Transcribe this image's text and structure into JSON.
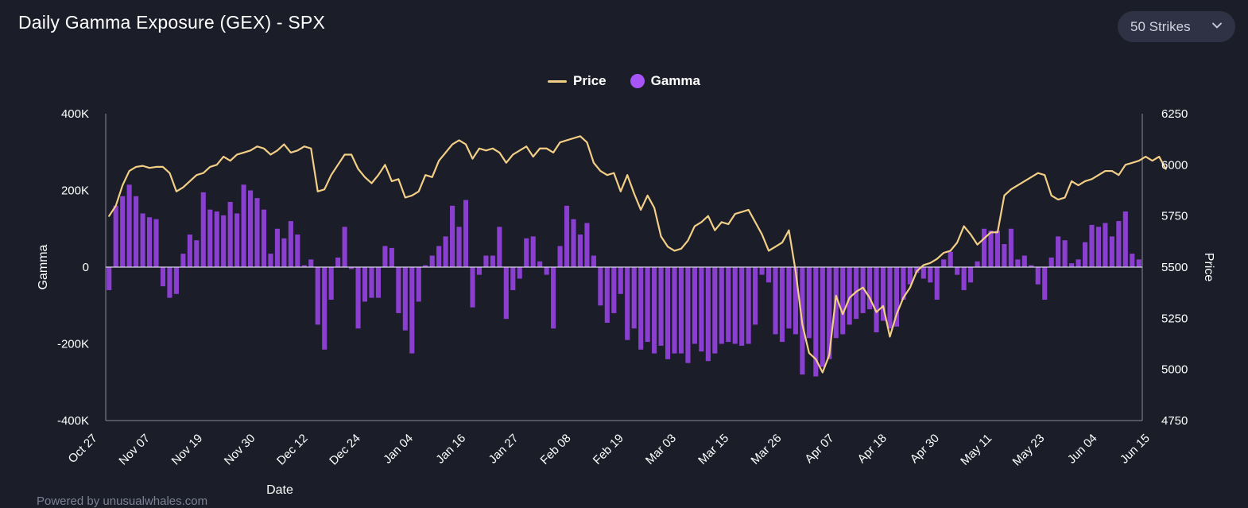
{
  "header": {
    "title": "Daily Gamma Exposure (GEX) - SPX",
    "strikes_label": "50 Strikes"
  },
  "legend": {
    "price_label": "Price",
    "gamma_label": "Gamma"
  },
  "footer": {
    "text": "Powered by unusualwhales.com"
  },
  "colors": {
    "background": "#1b1d29",
    "price_line": "#f3cf86",
    "gamma_bar": "#8b3fd0",
    "gamma_legend": "#a855f7"
  },
  "chart_data": {
    "type": "bar",
    "title": "Daily Gamma Exposure (GEX) - SPX",
    "xlabel": "Date",
    "ylabel_left": "Gamma",
    "ylabel_right": "Price",
    "ylim_left": [
      -400000,
      400000
    ],
    "ylim_right": [
      4750,
      6250
    ],
    "yticks_left": [
      "400K",
      "200K",
      "0",
      "-200K",
      "-400K"
    ],
    "yticks_right": [
      "6250",
      "6000",
      "5750",
      "5500",
      "5250",
      "5000",
      "4750"
    ],
    "xticks": [
      "Oct 27",
      "Nov 07",
      "Nov 19",
      "Nov 30",
      "Dec 12",
      "Dec 24",
      "Jan 04",
      "Jan 16",
      "Jan 27",
      "Feb 08",
      "Feb 19",
      "Mar 03",
      "Mar 15",
      "Mar 26",
      "Apr 07",
      "Apr 18",
      "Apr 30",
      "May 11",
      "May 23",
      "Jun 04",
      "Jun 15"
    ],
    "legend_position": "top-center",
    "grid": false,
    "series": [
      {
        "name": "Gamma",
        "type": "bar",
        "axis": "left",
        "values": [
          -60000,
          160000,
          185000,
          215000,
          185000,
          140000,
          130000,
          125000,
          -50000,
          -80000,
          -70000,
          35000,
          85000,
          70000,
          195000,
          150000,
          145000,
          135000,
          170000,
          140000,
          215000,
          200000,
          180000,
          150000,
          35000,
          100000,
          75000,
          120000,
          85000,
          5000,
          20000,
          -150000,
          -215000,
          -85000,
          25000,
          105000,
          -5000,
          -160000,
          -90000,
          -80000,
          -80000,
          55000,
          50000,
          -120000,
          -165000,
          -225000,
          -90000,
          5000,
          30000,
          55000,
          80000,
          160000,
          105000,
          175000,
          -105000,
          -20000,
          30000,
          30000,
          105000,
          -135000,
          -60000,
          -30000,
          75000,
          80000,
          15000,
          -20000,
          -160000,
          55000,
          160000,
          125000,
          85000,
          115000,
          30000,
          -100000,
          -145000,
          -120000,
          -70000,
          -190000,
          -160000,
          -215000,
          -195000,
          -225000,
          -205000,
          -240000,
          -225000,
          -225000,
          -250000,
          -200000,
          -220000,
          -245000,
          -225000,
          -200000,
          -195000,
          -200000,
          -205000,
          -200000,
          -150000,
          -20000,
          -40000,
          -175000,
          -195000,
          -160000,
          -175000,
          -280000,
          -185000,
          -285000,
          -260000,
          -240000,
          -185000,
          -175000,
          -150000,
          -135000,
          -120000,
          -110000,
          -170000,
          -140000,
          -160000,
          -155000,
          -85000,
          -45000,
          -15000,
          -30000,
          -40000,
          -85000,
          20000,
          40000,
          -20000,
          -60000,
          -40000,
          15000,
          100000,
          95000,
          95000,
          60000,
          100000,
          20000,
          30000,
          5000,
          -45000,
          -85000,
          25000,
          80000,
          70000,
          10000,
          20000,
          65000,
          110000,
          105000,
          115000,
          80000,
          120000,
          145000,
          35000,
          20000
        ]
      },
      {
        "name": "Price",
        "type": "line",
        "axis": "right",
        "values": [
          5750,
          5800,
          5900,
          5970,
          5990,
          5995,
          5985,
          5990,
          5990,
          5960,
          5870,
          5890,
          5920,
          5950,
          5960,
          5990,
          6000,
          6040,
          6020,
          6050,
          6060,
          6070,
          6090,
          6080,
          6050,
          6070,
          6100,
          6060,
          6070,
          6090,
          6080,
          5870,
          5880,
          5950,
          6000,
          6050,
          6050,
          5980,
          5940,
          5910,
          5950,
          6000,
          5920,
          5930,
          5840,
          5850,
          5870,
          5950,
          5940,
          6020,
          6060,
          6100,
          6120,
          6100,
          6030,
          6080,
          6070,
          6080,
          6060,
          6010,
          6050,
          6070,
          6090,
          6040,
          6080,
          6080,
          6060,
          6110,
          6120,
          6130,
          6140,
          6110,
          6010,
          5970,
          5950,
          5960,
          5870,
          5950,
          5860,
          5780,
          5850,
          5790,
          5650,
          5600,
          5580,
          5590,
          5630,
          5700,
          5720,
          5750,
          5680,
          5720,
          5710,
          5760,
          5770,
          5780,
          5720,
          5660,
          5580,
          5600,
          5620,
          5680,
          5480,
          5220,
          5080,
          5050,
          4985,
          5070,
          5360,
          5270,
          5350,
          5380,
          5400,
          5350,
          5280,
          5310,
          5160,
          5270,
          5350,
          5400,
          5480,
          5510,
          5520,
          5540,
          5570,
          5580,
          5620,
          5700,
          5660,
          5610,
          5640,
          5670,
          5670,
          5850,
          5880,
          5900,
          5920,
          5940,
          5960,
          5950,
          5850,
          5830,
          5840,
          5920,
          5900,
          5920,
          5930,
          5950,
          5970,
          5970,
          5950,
          6000,
          6010,
          6020,
          6040,
          6020,
          6040,
          5980
        ]
      }
    ]
  }
}
